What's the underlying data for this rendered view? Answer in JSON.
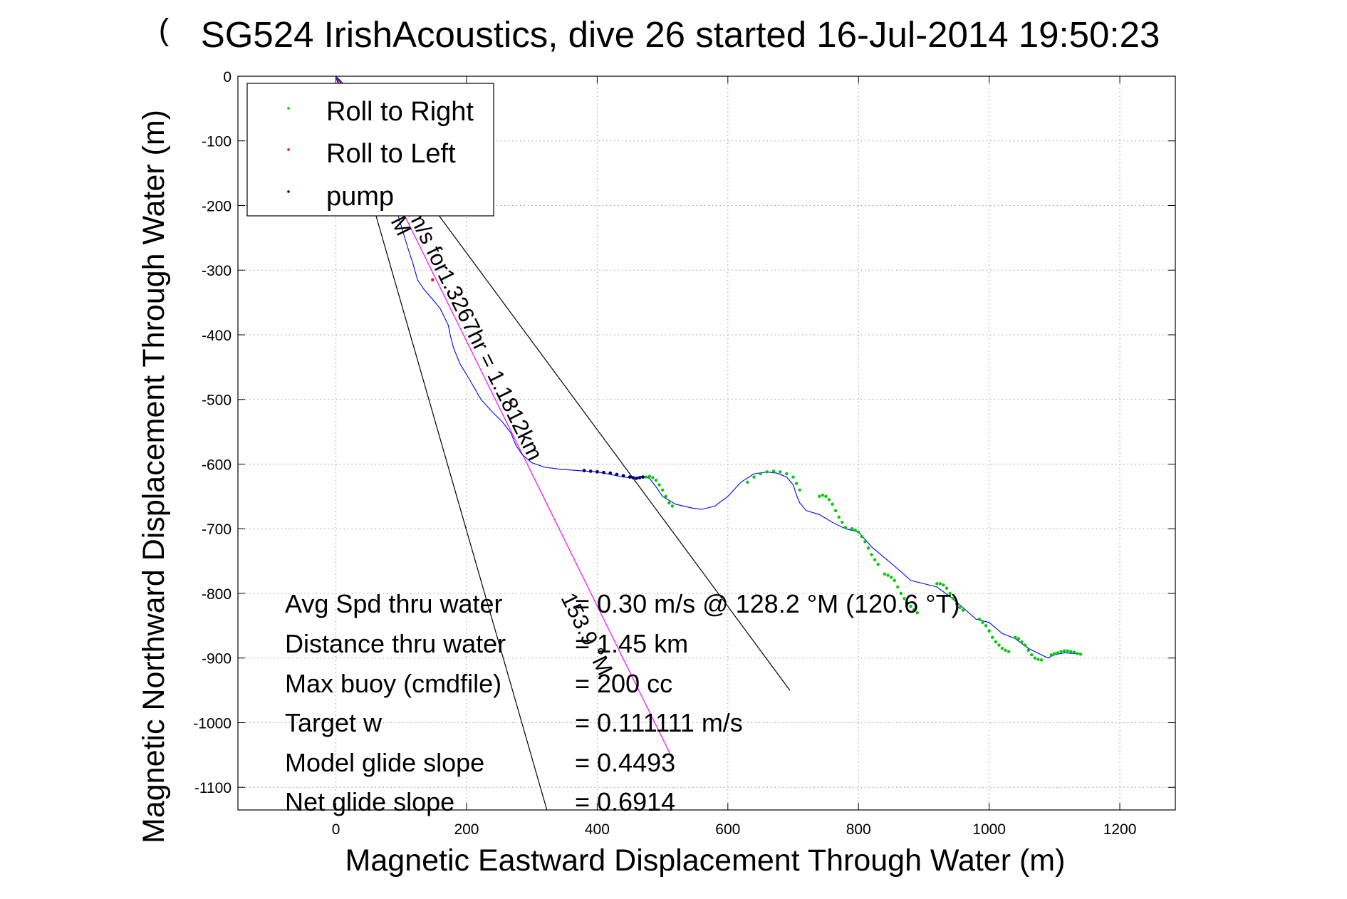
{
  "chart_data": {
    "type": "line",
    "title": "SG524 IrishAcoustics, dive 26 started 16-Jul-2014 19:50:23",
    "title_overlap_glyph": "(",
    "xlabel": "Magnetic Eastward Displacement Through Water (m)",
    "ylabel": "Magnetic Northward Displacement Through Water (m)",
    "xlim": [
      -150,
      1285
    ],
    "ylim": [
      -1135,
      0
    ],
    "xticks": [
      0,
      200,
      400,
      600,
      800,
      1000,
      1200
    ],
    "yticks": [
      0,
      -100,
      -200,
      -300,
      -400,
      -500,
      -600,
      -700,
      -800,
      -900,
      -1000,
      -1100
    ],
    "grid": true,
    "legend_position": "top-left",
    "legend": [
      {
        "label": "Roll to Right",
        "color": "#00cc00"
      },
      {
        "label": "Roll to Left",
        "color": "#ff0000"
      },
      {
        "label": "pump",
        "color": "#000066"
      }
    ],
    "series": [
      {
        "name": "track",
        "color": "#0000ff",
        "x": [
          0,
          10,
          25,
          40,
          60,
          80,
          95,
          110,
          118,
          125,
          135,
          148,
          160,
          172,
          175,
          180,
          190,
          205,
          222,
          240,
          255,
          268,
          275,
          285,
          300,
          320,
          345,
          370,
          400,
          420,
          440,
          460,
          470,
          480,
          490,
          500,
          520,
          545,
          560,
          580,
          600,
          620,
          640,
          660,
          675,
          690,
          700,
          705,
          710,
          720,
          740,
          760,
          780,
          800,
          820,
          840,
          860,
          880,
          900,
          920,
          940,
          960,
          980,
          1000,
          1020,
          1040,
          1060,
          1080,
          1090,
          1100,
          1115,
          1130,
          1140
        ],
        "y": [
          0,
          -10,
          -35,
          -70,
          -115,
          -165,
          -215,
          -265,
          -290,
          -315,
          -330,
          -345,
          -360,
          -385,
          -400,
          -420,
          -445,
          -470,
          -500,
          -520,
          -535,
          -552,
          -570,
          -585,
          -598,
          -605,
          -608,
          -610,
          -612,
          -616,
          -620,
          -622,
          -618,
          -622,
          -635,
          -650,
          -662,
          -668,
          -670,
          -665,
          -650,
          -628,
          -615,
          -612,
          -614,
          -620,
          -632,
          -648,
          -660,
          -672,
          -678,
          -690,
          -700,
          -705,
          -728,
          -745,
          -762,
          -780,
          -785,
          -790,
          -805,
          -822,
          -840,
          -845,
          -862,
          -870,
          -885,
          -895,
          -900,
          -895,
          -892,
          -893,
          -893
        ]
      }
    ],
    "roll_to_right": {
      "color": "#00cc00",
      "x": [
        475,
        480,
        485,
        490,
        495,
        500,
        505,
        510,
        515,
        630,
        640,
        650,
        660,
        670,
        680,
        690,
        700,
        705,
        710,
        740,
        745,
        750,
        755,
        760,
        765,
        770,
        775,
        780,
        790,
        795,
        800,
        805,
        810,
        815,
        820,
        825,
        830,
        840,
        845,
        850,
        855,
        860,
        865,
        870,
        875,
        880,
        885,
        890,
        920,
        925,
        930,
        935,
        940,
        945,
        950,
        955,
        960,
        985,
        990,
        995,
        1000,
        1005,
        1010,
        1015,
        1020,
        1025,
        1030,
        1040,
        1045,
        1050,
        1055,
        1060,
        1065,
        1070,
        1075,
        1080,
        1095,
        1100,
        1105,
        1110,
        1115,
        1120,
        1125,
        1130,
        1135,
        1140
      ],
      "y": [
        -620,
        -619,
        -621,
        -625,
        -632,
        -640,
        -650,
        -660,
        -665,
        -628,
        -620,
        -615,
        -612,
        -611,
        -612,
        -615,
        -620,
        -630,
        -640,
        -650,
        -648,
        -650,
        -655,
        -662,
        -672,
        -682,
        -690,
        -698,
        -700,
        -702,
        -705,
        -712,
        -720,
        -730,
        -740,
        -748,
        -755,
        -770,
        -772,
        -775,
        -780,
        -790,
        -800,
        -808,
        -815,
        -820,
        -825,
        -830,
        -785,
        -785,
        -787,
        -792,
        -800,
        -808,
        -816,
        -822,
        -826,
        -840,
        -845,
        -850,
        -858,
        -868,
        -875,
        -880,
        -885,
        -888,
        -890,
        -868,
        -870,
        -875,
        -880,
        -888,
        -895,
        -900,
        -902,
        -903,
        -895,
        -893,
        -892,
        -890,
        -889,
        -889,
        -890,
        -891,
        -893,
        -894
      ]
    },
    "roll_to_left": {
      "color": "#ff0000",
      "x": [
        148,
        268
      ],
      "y": [
        -315,
        -505
      ]
    },
    "pump": {
      "color": "#000066",
      "x": [
        380,
        390,
        400,
        410,
        420,
        430,
        440,
        450,
        455,
        460,
        465,
        470
      ],
      "y": [
        -610,
        -611,
        -612,
        -613,
        -614,
        -616,
        -618,
        -620,
        -621,
        -622,
        -621,
        -620
      ]
    },
    "reference_lines": [
      {
        "name": "left-envelope-line",
        "color": "#000000",
        "x": [
          0,
          323
        ],
        "y": [
          0,
          -1135
        ]
      },
      {
        "name": "right-envelope-line",
        "color": "#000000",
        "x": [
          0,
          695
        ],
        "y": [
          0,
          -950
        ]
      },
      {
        "name": "target-heading-line",
        "color": "#ff00ff",
        "x": [
          0,
          515
        ],
        "y": [
          0,
          -1055
        ]
      }
    ],
    "annotations": {
      "target_line_label": "m/s for1.3267hr = 1.1812km",
      "target_line_label_start": "M",
      "heading_label": "153.9 °M",
      "avg_spd_label": "Avg Spd thru water",
      "avg_spd_value": "= 0.30 m/s @ 128.2 °M (120.6 °T)",
      "distance_label": "Distance thru water",
      "distance_value": "= 1.45 km",
      "max_buoy_label": "Max buoy (cmdfile)",
      "max_buoy_value": "= 200 cc",
      "target_w_label": "Target w",
      "target_w_value": "= 0.111111 m/s",
      "model_glide_label": "Model glide slope",
      "model_glide_value": "= 0.4493",
      "net_glide_label": "Net glide slope",
      "net_glide_value": "= 0.6914"
    }
  }
}
